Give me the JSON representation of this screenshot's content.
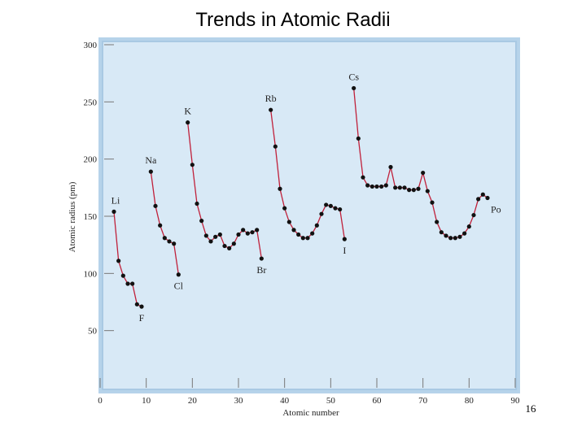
{
  "chart_data": {
    "type": "line",
    "title": "Trends in Atomic Radii",
    "page_number": "16",
    "x_label": "Atomic number",
    "y_label": "Atomic radius (pm)",
    "xlim": [
      0,
      90
    ],
    "xticks": [
      0,
      10,
      20,
      30,
      40,
      50,
      60,
      70,
      80,
      90
    ],
    "ylim": [
      0,
      300
    ],
    "yticks": [
      50,
      100,
      150,
      200,
      250,
      300
    ],
    "x": [
      3,
      4,
      5,
      6,
      7,
      8,
      9,
      10,
      11,
      12,
      13,
      14,
      15,
      16,
      17,
      18,
      19,
      20,
      21,
      22,
      23,
      24,
      25,
      26,
      27,
      28,
      29,
      30,
      31,
      32,
      33,
      34,
      35,
      36,
      37,
      38,
      39,
      40,
      41,
      42,
      43,
      44,
      45,
      46,
      47,
      48,
      49,
      50,
      51,
      52,
      53,
      54,
      55,
      56,
      57,
      58,
      59,
      60,
      61,
      62,
      63,
      64,
      65,
      66,
      67,
      68,
      69,
      70,
      71,
      72,
      73,
      74,
      75,
      76,
      77,
      78,
      79,
      80,
      81,
      82,
      83,
      84
    ],
    "series": [
      {
        "name": "Atomic radius",
        "color": "#c0203a",
        "values": [
          154,
          111,
          98,
          91,
          91,
          73,
          71,
          null,
          189,
          159,
          142,
          131,
          128,
          126,
          99,
          null,
          232,
          195,
          161,
          146,
          133,
          128,
          132,
          134,
          124,
          122,
          126,
          134,
          138,
          135,
          136,
          138,
          113,
          null,
          243,
          211,
          174,
          157,
          145,
          138,
          134,
          131,
          131,
          135,
          142,
          152,
          160,
          159,
          157,
          156,
          130,
          null,
          262,
          218,
          184,
          177,
          176,
          176,
          176,
          177,
          193,
          175,
          175,
          175,
          173,
          173,
          174,
          188,
          172,
          162,
          145,
          136,
          133,
          131,
          131,
          132,
          135,
          141,
          151,
          165,
          169,
          166
        ]
      }
    ],
    "annotations": [
      {
        "text": "Li",
        "x": 3
      },
      {
        "text": "F",
        "x": 9
      },
      {
        "text": "Na",
        "x": 11
      },
      {
        "text": "Cl",
        "x": 17
      },
      {
        "text": "K",
        "x": 19
      },
      {
        "text": "Br",
        "x": 35
      },
      {
        "text": "Rb",
        "x": 37
      },
      {
        "text": "I",
        "x": 53
      },
      {
        "text": "Cs",
        "x": 55
      },
      {
        "text": "Po",
        "x": 84
      }
    ]
  }
}
